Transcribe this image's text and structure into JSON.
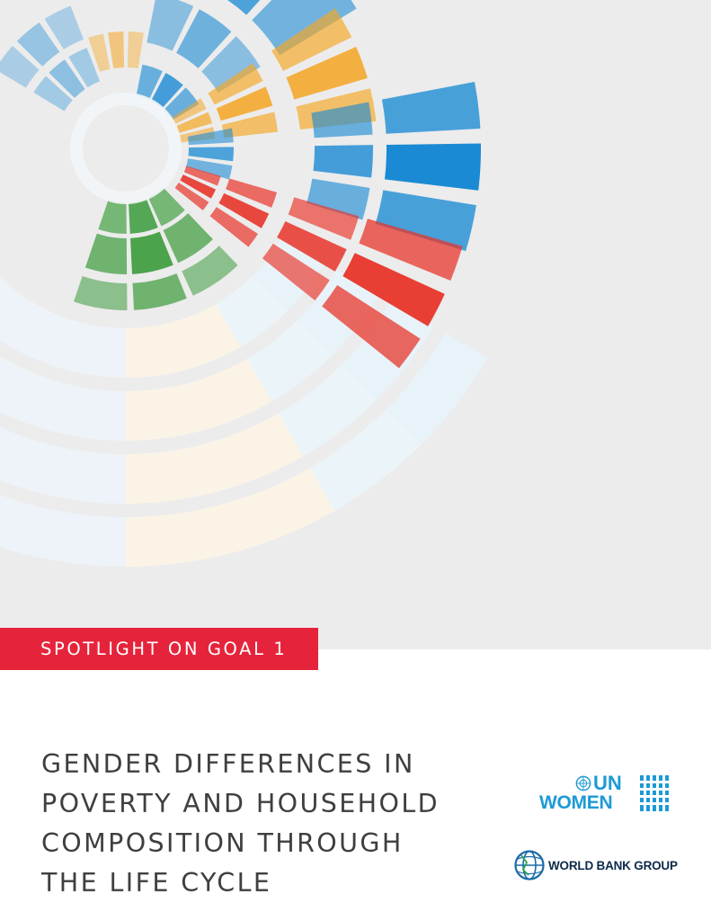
{
  "banner": {
    "label": "SPOTLIGHT ON GOAL 1"
  },
  "title": {
    "lines": [
      "GENDER DIFFERENCES IN",
      "POVERTY AND HOUSEHOLD",
      "COMPOSITION THROUGH",
      "THE LIFE CYCLE"
    ]
  },
  "logos": {
    "un_women": {
      "line1": "UN",
      "line2": "WOMEN"
    },
    "world_bank": {
      "label": "WORLD BANK GROUP"
    }
  },
  "colors": {
    "banner_red": "#e5243b",
    "background_gray": "#ececec",
    "title_gray": "#3f3f3f",
    "un_blue": "#1d9ad6",
    "wbg_navy": "#0d2a4a",
    "wheel_blue": "#1a8ad4",
    "wheel_orange": "#f5a623",
    "wheel_red": "#e8352a",
    "wheel_green": "#3a9b3a"
  },
  "icons": [
    "sdg-wheel-graphic",
    "un-emblem-icon",
    "un-women-equality-icon",
    "world-bank-globe-icon"
  ]
}
